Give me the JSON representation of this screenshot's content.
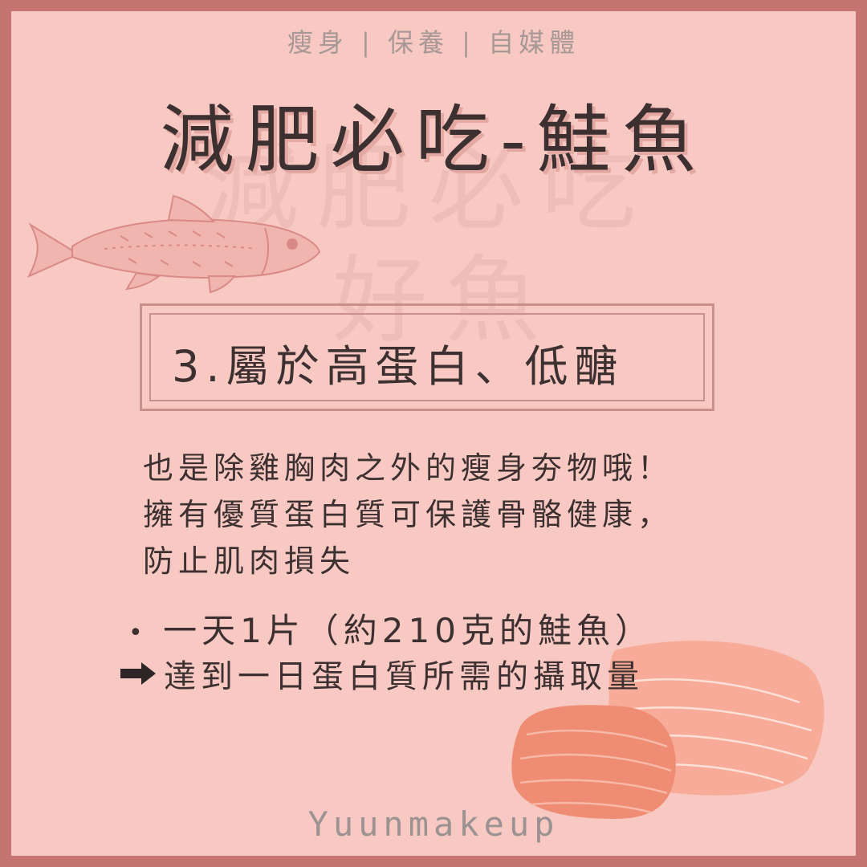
{
  "header": {
    "tagline": "瘦身 | 保養 | 自媒體",
    "title": "減肥必吃-鮭魚"
  },
  "background": {
    "watermark_line_1": "減肥必吃",
    "watermark_line_2": "好魚"
  },
  "section": {
    "heading": "3.屬於高蛋白、低醣"
  },
  "body": {
    "lines": [
      "也是除雞胸肉之外的瘦身夯物哦！",
      "擁有優質蛋白質可保護骨骼健康，",
      "防止肌肉損失"
    ]
  },
  "tips": {
    "bullet": "一天1片（約210克的鮭魚）",
    "result": "達到一日蛋白質所需的攝取量"
  },
  "footer": {
    "signature": "Yuunmakeup"
  },
  "icons": {
    "fish": "salmon-fish-icon",
    "fillet": "salmon-fillet-icon",
    "arrow": "arrow-right-icon"
  },
  "colors": {
    "frame": "#c57471",
    "card": "#f7c9c2",
    "text": "#3d3030",
    "salmon_dark": "#ee8c74",
    "salmon_light": "#f8ab98"
  }
}
